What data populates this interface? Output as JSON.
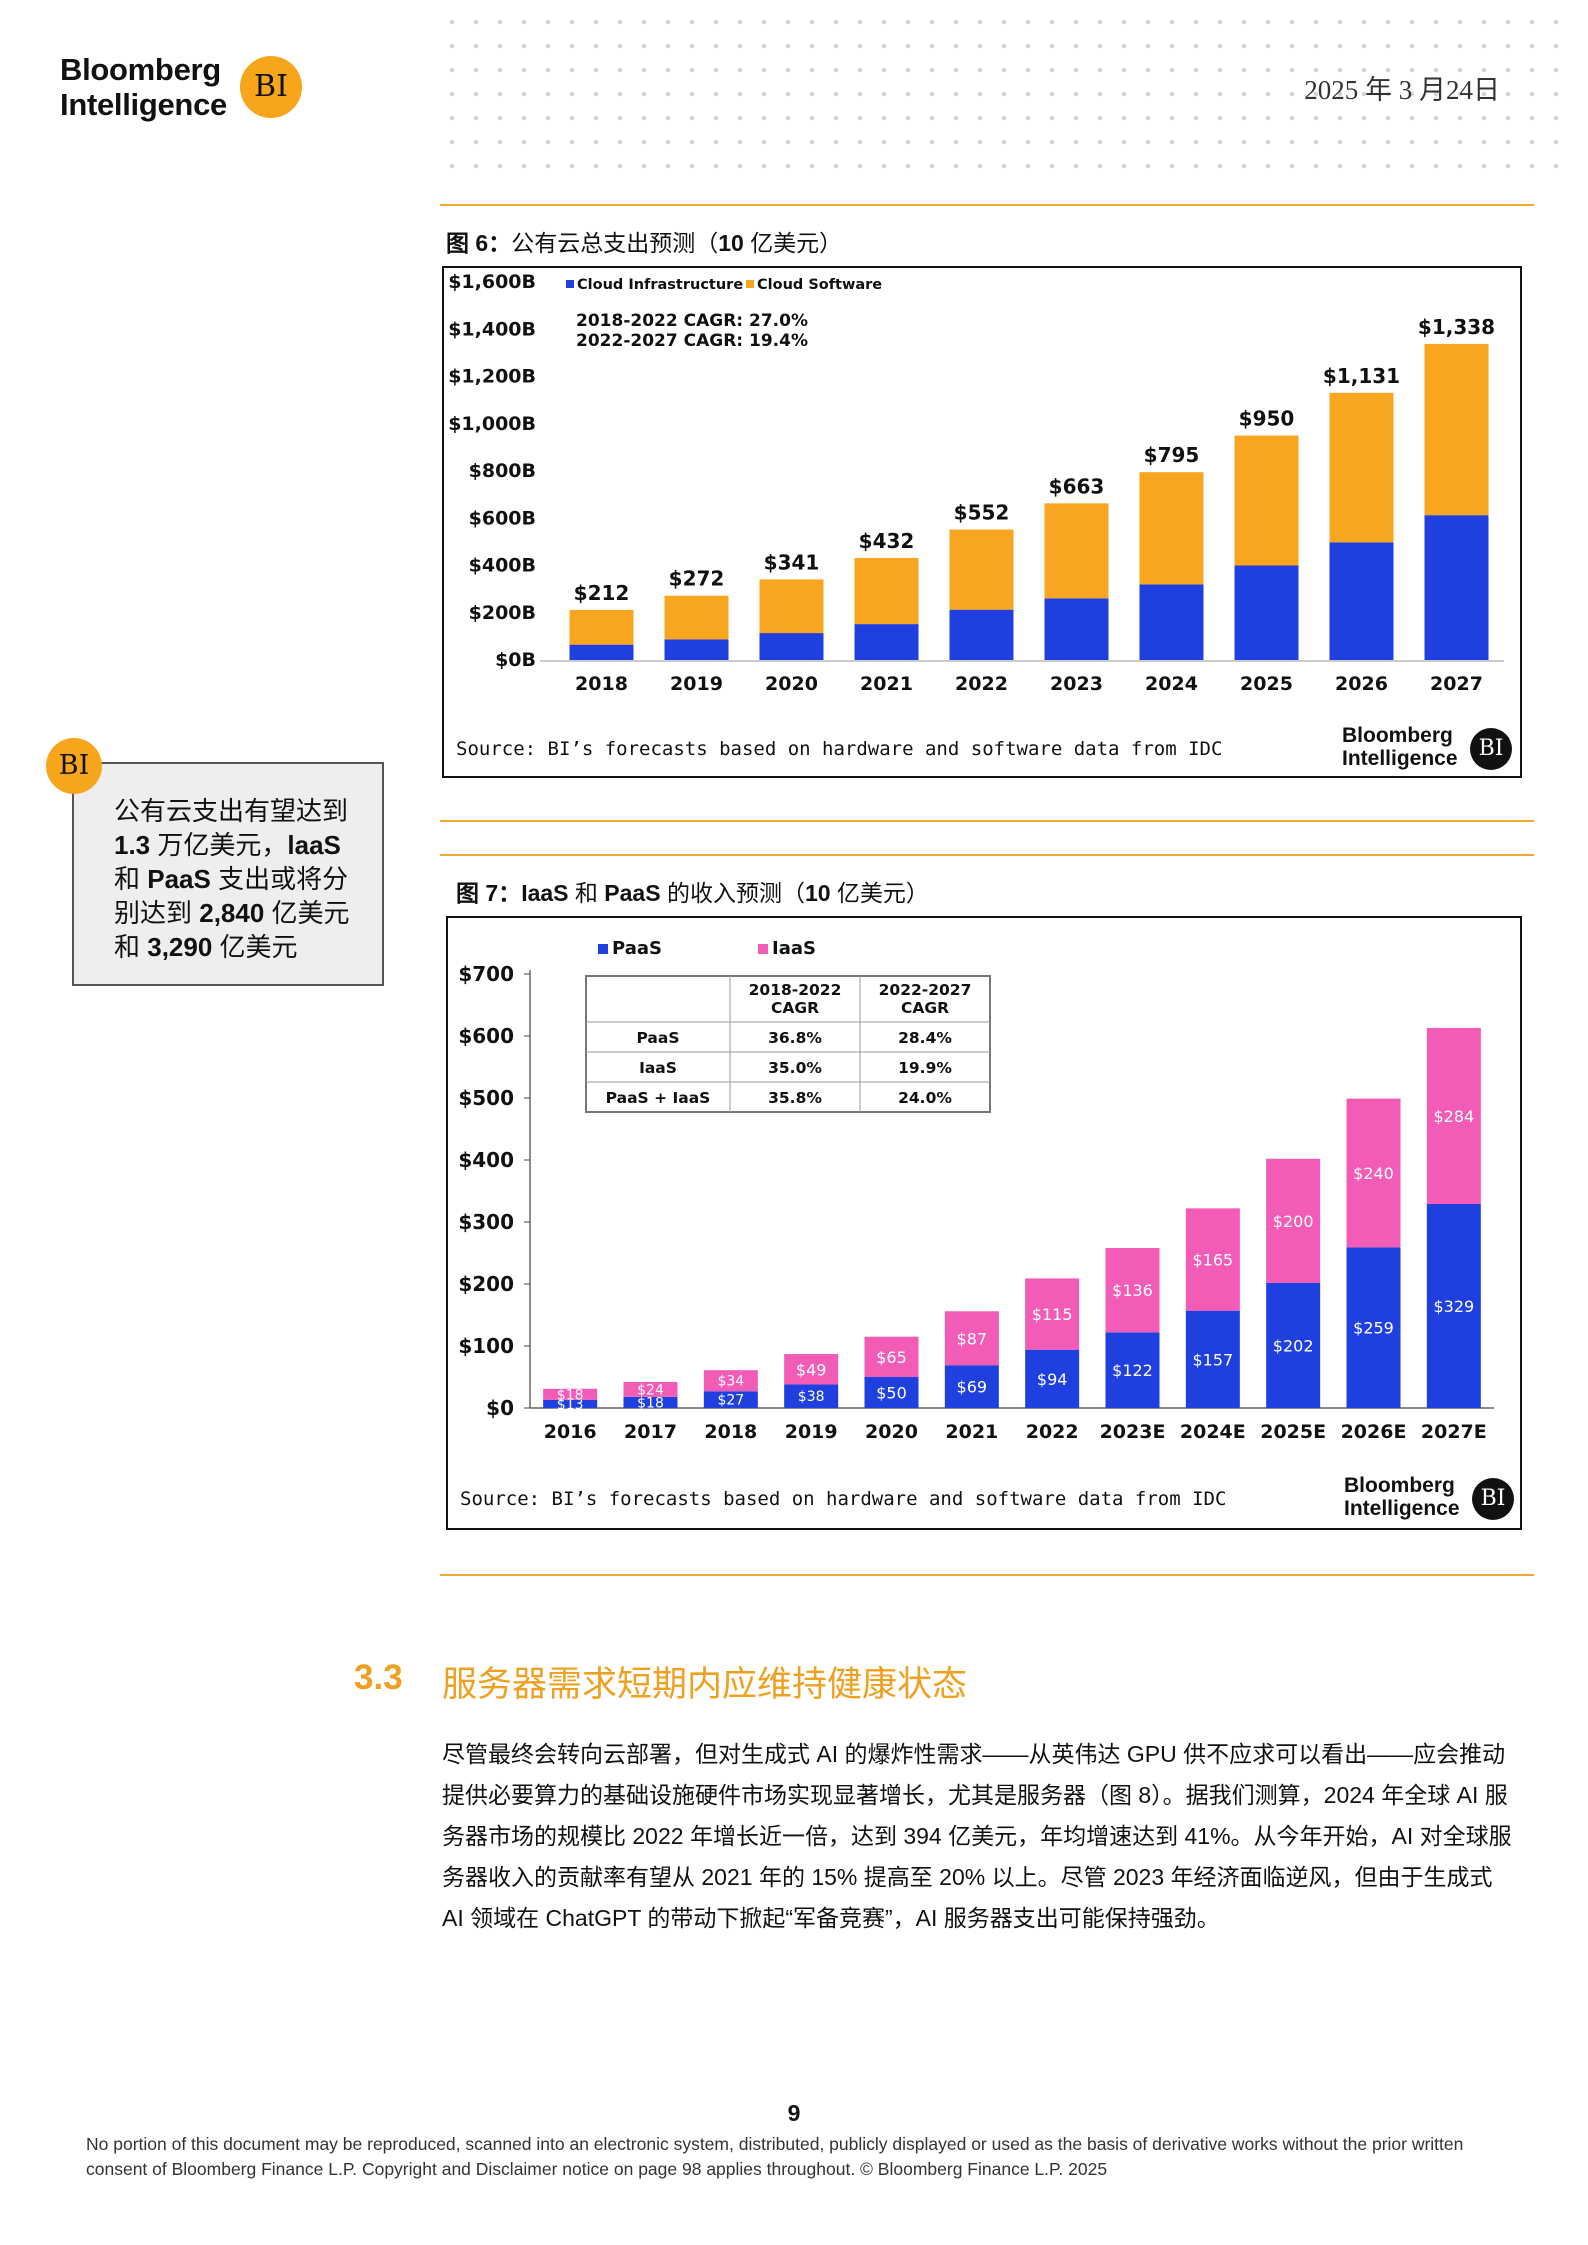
{
  "header": {
    "logo_line1": "Bloomberg",
    "logo_line2": "Intelligence",
    "logo_badge": "BI",
    "date": "2025 年 3 月24日"
  },
  "figure6": {
    "title_prefix": "图 6：",
    "title_main": "公有云总支出预测（",
    "title_bold": "10",
    "title_suffix": " 亿美元）",
    "source": "Source: BI’s forecasts based on hardware and software data from IDC",
    "logo_line1": "Bloomberg",
    "logo_line2": "Intelligence",
    "logo_badge": "BI"
  },
  "figure7": {
    "title_prefix": "图 7：",
    "title_bold1": "IaaS",
    "title_mid": " 和 ",
    "title_bold2": "PaaS",
    "title_main": " 的收入预测（",
    "title_bold3": "10",
    "title_suffix": " 亿美元）",
    "source": "Source: BI’s forecasts based on hardware and software data from IDC",
    "logo_line1": "Bloomberg",
    "logo_line2": "Intelligence",
    "logo_badge": "BI"
  },
  "callout": {
    "badge": "BI",
    "line1": "公有云支出有望达到",
    "line2_bold": "1.3",
    "line2": " 万亿美元，",
    "line2_bold2": "laaS",
    "line3_pre": "和 ",
    "line3_bold": "PaaS",
    "line3": " 支出或将分",
    "line4_pre": "别达到 ",
    "line4_bold": "2,840",
    "line4": " 亿美元",
    "line5_pre": "和 ",
    "line5_bold": "3,290",
    "line5": " 亿美元"
  },
  "section": {
    "number": "3.3",
    "title": "服务器需求短期内应维持健康状态",
    "body": "尽管最终会转向云部署，但对生成式 AI 的爆炸性需求——从英伟达 GPU 供不应求可以看出——应会推动提供必要算力的基础设施硬件市场实现显著增长，尤其是服务器（图 8）。据我们测算，2024 年全球 AI 服务器市场的规模比 2022 年增长近一倍，达到 394 亿美元，年均增速达到 41%。从今年开始，AI 对全球服务器收入的贡献率有望从 2021 年的 15% 提高至 20% 以上。尽管 2023 年经济面临逆风，但由于生成式 AI 领域在 ChatGPT 的带动下掀起“军备竞赛”，AI 服务器支出可能保持强劲。"
  },
  "footer": {
    "page_number": "9",
    "disclaimer": "No portion of this document may be reproduced, scanned into an electronic system, distributed, publicly displayed or used as the basis of derivative works without the prior written consent of Bloomberg Finance L.P. Copyright and Disclaimer notice on page 98 applies throughout. © Bloomberg Finance L.P. 2025"
  },
  "chart_data": [
    {
      "type": "bar",
      "stacked": true,
      "title": "公有云总支出预测（10 亿美元）",
      "categories": [
        "2018",
        "2019",
        "2020",
        "2021",
        "2022",
        "2023",
        "2024",
        "2025",
        "2026",
        "2027"
      ],
      "series": [
        {
          "name": "Cloud Infrastructure",
          "color": "#1f3fdf",
          "values": [
            65,
            87,
            114,
            152,
            213,
            261,
            320,
            400,
            498,
            613
          ]
        },
        {
          "name": "Cloud Software",
          "color": "#f8a51f",
          "values": [
            147,
            185,
            227,
            280,
            339,
            402,
            475,
            550,
            633,
            725
          ]
        }
      ],
      "totals": [
        212,
        272,
        341,
        432,
        552,
        663,
        795,
        950,
        1131,
        1338
      ],
      "total_labels": [
        "$212",
        "$272",
        "$341",
        "$432",
        "$552",
        "$663",
        "$795",
        "$950",
        "$1,131",
        "$1,338"
      ],
      "yticks": [
        "$0B",
        "$200B",
        "$400B",
        "$600B",
        "$800B",
        "$1,000B",
        "$1,200B",
        "$1,400B",
        "$1,600B"
      ],
      "ylim": [
        0,
        1600
      ],
      "annotations": [
        "2018-2022 CAGR: 27.0%",
        "2022-2027 CAGR: 19.4%"
      ],
      "legend": [
        "Cloud Infrastructure",
        "Cloud Software"
      ]
    },
    {
      "type": "bar",
      "stacked": true,
      "title": "IaaS 和 PaaS 的收入预测（10 亿美元）",
      "categories": [
        "2016",
        "2017",
        "2018",
        "2019",
        "2020",
        "2021",
        "2022",
        "2023E",
        "2024E",
        "2025E",
        "2026E",
        "2027E"
      ],
      "series": [
        {
          "name": "PaaS",
          "color": "#1f3fdf",
          "values": [
            13,
            18,
            27,
            38,
            50,
            69,
            94,
            122,
            157,
            202,
            259,
            329
          ],
          "labels": [
            "$13",
            "$18",
            "$27",
            "$38",
            "$50",
            "$69",
            "$94",
            "$122",
            "$157",
            "$202",
            "$259",
            "$329"
          ]
        },
        {
          "name": "IaaS",
          "color": "#f25cb7",
          "values": [
            18,
            24,
            34,
            49,
            65,
            87,
            115,
            136,
            165,
            200,
            240,
            284
          ],
          "labels": [
            "$18",
            "$24",
            "$34",
            "$49",
            "$65",
            "$87",
            "$115",
            "$136",
            "$165",
            "$200",
            "$240",
            "$284"
          ]
        }
      ],
      "yticks": [
        "$0",
        "$100",
        "$200",
        "$300",
        "$400",
        "$500",
        "$600",
        "$700"
      ],
      "ylim": [
        0,
        700
      ],
      "legend": [
        "PaaS",
        "IaaS"
      ],
      "cagr_table": {
        "headers": [
          "",
          "2018-2022 CAGR",
          "2022-2027 CAGR"
        ],
        "header_lines": [
          [
            "2018-2022",
            "CAGR"
          ],
          [
            "2022-2027",
            "CAGR"
          ]
        ],
        "rows": [
          [
            "PaaS",
            "36.8%",
            "28.4%"
          ],
          [
            "IaaS",
            "35.0%",
            "19.9%"
          ],
          [
            "PaaS + IaaS",
            "35.8%",
            "24.0%"
          ]
        ]
      }
    }
  ]
}
